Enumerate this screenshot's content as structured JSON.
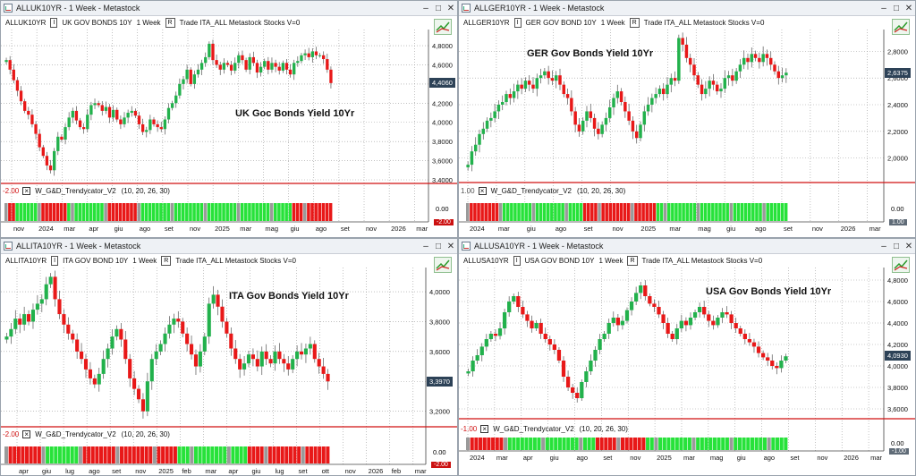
{
  "panes": [
    {
      "id": "uk",
      "title": "ALLUK10YR - 1 Week - Metastock",
      "toolbar": {
        "symbol": "ALLUK10YR",
        "i_btn": "I",
        "desc": "UK GOV BONDS 10Y",
        "period": "1 Week",
        "r_btn": "R",
        "extra": "Trade  ITA_ALL  Metastock  Stocks  V=0"
      },
      "label": "UK Goc Bonds Yield 10Yr",
      "price_badge": "4,4060",
      "y_ticks": [
        "4,8000",
        "4,6000",
        "4,4000",
        "4,2000",
        "4,0000",
        "3,8000",
        "3,6000",
        "3,4000"
      ],
      "y_range": [
        3.4,
        4.95
      ],
      "x_ticks": [
        "nov",
        "2024",
        "mar",
        "apr",
        "giu",
        "ago",
        "set",
        "nov",
        "2025",
        "mar",
        "mag",
        "giu",
        "ago",
        "set",
        "nov",
        "2026",
        "mar"
      ],
      "indicator": {
        "name": "W_G&D_Trendycator_V2",
        "params": "(10, 20, 26, 30)",
        "level_left": "-2.00",
        "level_right": "0.00",
        "level_badge": "-2.00"
      },
      "closes": [
        4.65,
        4.55,
        4.44,
        4.33,
        4.22,
        4.12,
        4.08,
        3.98,
        3.88,
        3.74,
        3.65,
        3.55,
        3.5,
        3.7,
        3.85,
        3.82,
        3.95,
        4.05,
        4.12,
        4.02,
        3.95,
        3.93,
        4.08,
        4.18,
        4.2,
        4.18,
        4.12,
        4.16,
        4.05,
        4.13,
        4.03,
        3.98,
        4.05,
        4.1,
        4.12,
        4.07,
        3.98,
        3.9,
        3.92,
        4.03,
        3.98,
        3.95,
        3.93,
        4.03,
        4.15,
        4.2,
        4.28,
        4.4,
        4.45,
        4.55,
        4.4,
        4.5,
        4.55,
        4.62,
        4.68,
        4.82,
        4.65,
        4.6,
        4.55,
        4.62,
        4.6,
        4.54,
        4.62,
        4.7,
        4.65,
        4.55,
        4.68,
        4.62,
        4.52,
        4.58,
        4.64,
        4.55,
        4.62,
        4.58,
        4.54,
        4.62,
        4.55,
        4.5,
        4.62,
        4.64,
        4.7,
        4.72,
        4.68,
        4.74,
        4.7,
        4.7,
        4.66,
        4.55,
        4.41
      ],
      "trend": "rrrgggggggrrrrrrrgggggggggggrrrrrrrrrgggggggggggggggggggggggggggggggggggggggggrrrrrrrrrrr"
    },
    {
      "id": "ger",
      "title": "ALLGER10YR - 1 Week - Metastock",
      "toolbar": {
        "symbol": "ALLGER10YR",
        "i_btn": "I",
        "desc": "GER GOV BOND 10Y",
        "period": "1 Week",
        "r_btn": "R",
        "extra": "Trade  ITA_ALL  Metastock  Stocks  V=0"
      },
      "label": "GER Gov Bonds Yield 10Yr",
      "price_badge": "2,6375",
      "y_ticks": [
        "2,8000",
        "2,6000",
        "2,4000",
        "2,2000",
        "2,0000"
      ],
      "y_range": [
        1.85,
        2.95
      ],
      "x_ticks": [
        "2024",
        "mar",
        "giu",
        "ago",
        "set",
        "nov",
        "2025",
        "mar",
        "mag",
        "giu",
        "ago",
        "set",
        "nov",
        "2026",
        "mar"
      ],
      "indicator": {
        "name": "W_G&D_Trendycator_V2",
        "params": "(10, 20, 26, 30)",
        "level_left": "1.00",
        "level_right": "0.00",
        "level_badge": "1.00"
      },
      "closes": [
        1.95,
        2.05,
        2.1,
        2.18,
        2.22,
        2.28,
        2.3,
        2.35,
        2.4,
        2.42,
        2.48,
        2.45,
        2.5,
        2.55,
        2.52,
        2.58,
        2.55,
        2.52,
        2.6,
        2.62,
        2.65,
        2.6,
        2.58,
        2.62,
        2.55,
        2.48,
        2.45,
        2.35,
        2.25,
        2.2,
        2.28,
        2.35,
        2.3,
        2.22,
        2.18,
        2.25,
        2.3,
        2.38,
        2.45,
        2.5,
        2.42,
        2.35,
        2.28,
        2.2,
        2.15,
        2.25,
        2.35,
        2.4,
        2.45,
        2.48,
        2.52,
        2.48,
        2.55,
        2.6,
        2.58,
        2.9,
        2.85,
        2.75,
        2.7,
        2.62,
        2.55,
        2.48,
        2.52,
        2.58,
        2.55,
        2.5,
        2.52,
        2.6,
        2.62,
        2.58,
        2.65,
        2.7,
        2.75,
        2.72,
        2.78,
        2.75,
        2.72,
        2.78,
        2.75,
        2.7,
        2.65,
        2.6,
        2.62,
        2.64
      ],
      "trend": "rrrrrrrrrrggggggggggggggggggggggrrrrrrrrrrrrrrrrrrrrgggggggggggggggggggggggggggggggggggg"
    },
    {
      "id": "ita",
      "title": "ALLITA10YR - 1 Week - Metastock",
      "toolbar": {
        "symbol": "ALLITA10YR",
        "i_btn": "I",
        "desc": "ITA GOV BOND 10Y",
        "period": "1 Week",
        "r_btn": "R",
        "extra": "Trade  ITA_ALL  Metastock  Stocks  V=0"
      },
      "label": "ITA Gov Bonds Yield 10Yr",
      "price_badge": "3,3970",
      "y_ticks": [
        "4,0000",
        "3,8000",
        "3,6000",
        "3,4000",
        "3,2000"
      ],
      "y_range": [
        3.12,
        4.15
      ],
      "x_ticks": [
        "apr",
        "giu",
        "lug",
        "ago",
        "set",
        "nov",
        "2025",
        "feb",
        "mar",
        "apr",
        "giu",
        "lug",
        "set",
        "ott",
        "nov",
        "2026",
        "feb",
        "mar"
      ],
      "indicator": {
        "name": "W_G&D_Trendycator_V2",
        "params": "(10, 20, 26, 30)",
        "level_left": "-2.00",
        "level_right": "0.00",
        "level_badge": "-2.00"
      },
      "closes": [
        3.7,
        3.75,
        3.82,
        3.78,
        3.85,
        3.8,
        3.88,
        3.92,
        3.95,
        4.05,
        4.1,
        3.95,
        3.85,
        3.78,
        3.72,
        3.68,
        3.6,
        3.55,
        3.48,
        3.42,
        3.38,
        3.45,
        3.55,
        3.62,
        3.7,
        3.75,
        3.68,
        3.55,
        3.42,
        3.35,
        3.28,
        3.2,
        3.4,
        3.55,
        3.6,
        3.65,
        3.72,
        3.78,
        3.82,
        3.8,
        3.72,
        3.65,
        3.58,
        3.5,
        3.6,
        3.7,
        3.92,
        3.98,
        3.9,
        3.8,
        3.72,
        3.62,
        3.55,
        3.48,
        3.52,
        3.58,
        3.55,
        3.5,
        3.6,
        3.55,
        3.52,
        3.6,
        3.55,
        3.52,
        3.48,
        3.55,
        3.6,
        3.58,
        3.62,
        3.65,
        3.55,
        3.5,
        3.45,
        3.4
      ],
      "trend": "rrrrrrrrrrgggggggggrrrrrrrrrrrrrrrrrrrrrrrgggggggggggggggggrrrrrrrrrrrrrrrrrrrr"
    },
    {
      "id": "usa",
      "title": "ALLUSA10YR - 1 Week - Metastock",
      "toolbar": {
        "symbol": "ALLUSA10YR",
        "i_btn": "I",
        "desc": "USA GOV BOND 10Y",
        "period": "1 Week",
        "r_btn": "R",
        "extra": "Trade  ITA_ALL  Metastock  Stocks  V=0"
      },
      "label": "USA Gov Bonds Yield 10Yr",
      "price_badge": "4,0930",
      "y_ticks": [
        "4,8000",
        "4,6000",
        "4,4000",
        "4,2000",
        "4,0000",
        "3,8000",
        "3,6000"
      ],
      "y_range": [
        3.55,
        4.9
      ],
      "x_ticks": [
        "2024",
        "mar",
        "apr",
        "giu",
        "ago",
        "set",
        "nov",
        "2025",
        "mar",
        "mag",
        "giu",
        "ago",
        "set",
        "nov",
        "2026",
        "mar"
      ],
      "indicator": {
        "name": "W_G&D_Trendycator_V2",
        "params": "(10, 20, 26, 30)",
        "level_left": "-1.00",
        "level_right": "0.00",
        "level_badge": "-1.00"
      },
      "closes": [
        3.95,
        4.05,
        4.1,
        4.18,
        4.25,
        4.3,
        4.28,
        4.35,
        4.5,
        4.6,
        4.65,
        4.55,
        4.48,
        4.42,
        4.35,
        4.4,
        4.3,
        4.25,
        4.2,
        4.15,
        4.05,
        3.9,
        3.8,
        3.75,
        3.7,
        3.85,
        3.95,
        4.05,
        4.15,
        4.25,
        4.3,
        4.4,
        4.45,
        4.38,
        4.42,
        4.52,
        4.6,
        4.68,
        4.75,
        4.65,
        4.58,
        4.55,
        4.48,
        4.4,
        4.3,
        4.25,
        4.35,
        4.42,
        4.38,
        4.45,
        4.5,
        4.55,
        4.48,
        4.42,
        4.38,
        4.45,
        4.5,
        4.48,
        4.4,
        4.35,
        4.3,
        4.25,
        4.22,
        4.18,
        4.12,
        4.08,
        4.05,
        4.0,
        3.98,
        4.05,
        4.09
      ],
      "trend": "rrrrrrrrrggggggggggggggggggggggrrrrrrrrrrrrgggggggggggggggggggggggggggggggggg"
    }
  ]
}
